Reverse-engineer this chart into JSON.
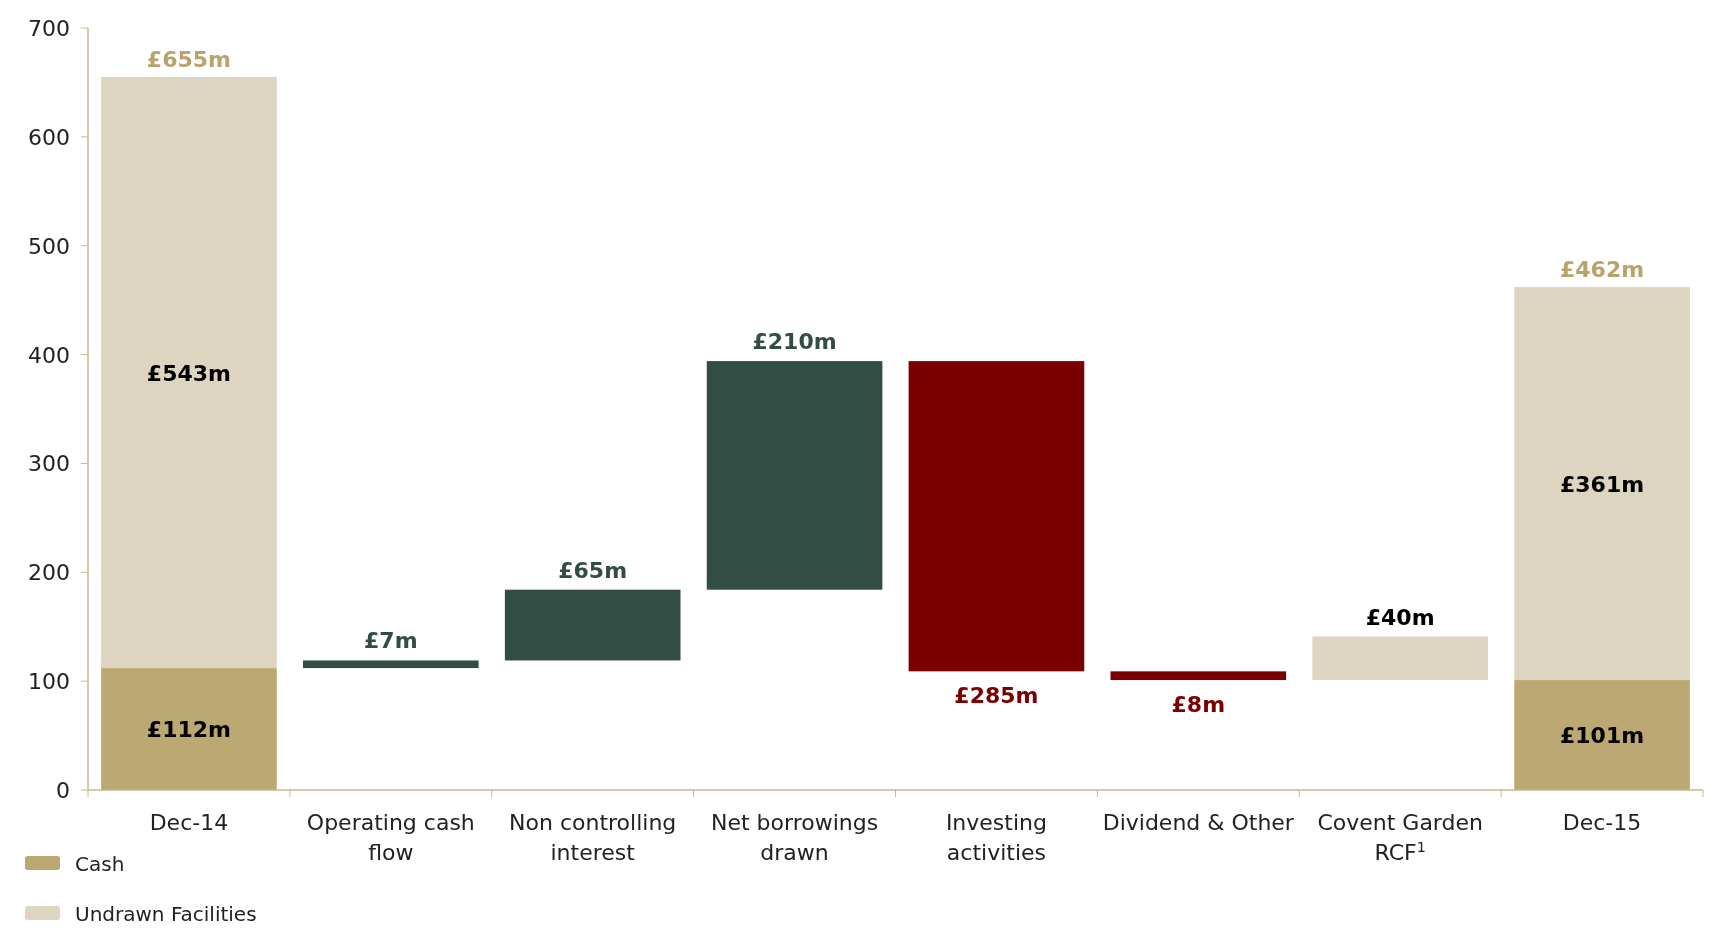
{
  "chart_data": {
    "type": "bar",
    "categories": [
      "Dec-14",
      "Operating cash flow",
      "Non controlling interest",
      "Net borrowings drawn",
      "Investing activities",
      "Dividend & Other",
      "Covent Garden RCF$^{1}$",
      "Dec-15"
    ],
    "series": [
      {
        "name": "Cash",
        "color": "#bca872",
        "values": [
          112,
          null,
          null,
          null,
          null,
          null,
          null,
          101
        ],
        "base": [
          0,
          null,
          null,
          null,
          null,
          null,
          null,
          0
        ],
        "value_labels": [
          "£112m",
          null,
          null,
          null,
          null,
          null,
          null,
          "£101m"
        ]
      },
      {
        "name": "Undrawn Facilities",
        "color": "#ded5c0",
        "values": [
          543,
          null,
          null,
          null,
          null,
          null,
          40,
          361
        ],
        "base": [
          112,
          null,
          null,
          null,
          null,
          null,
          101,
          101
        ],
        "value_labels": [
          "£543m",
          null,
          null,
          null,
          null,
          null,
          "£40m",
          "£361m"
        ]
      },
      {
        "color": "#324d44",
        "values": [
          null,
          7,
          65,
          210,
          null,
          null,
          null,
          null
        ],
        "base": [
          null,
          112,
          119,
          184,
          null,
          null,
          null,
          null
        ],
        "value_labels": [
          null,
          "£7m",
          "£65m",
          "£210m",
          null,
          null,
          null,
          null
        ]
      },
      {
        "color": "#7a0000",
        "values": [
          null,
          null,
          null,
          null,
          285,
          8,
          null,
          null
        ],
        "base": [
          null,
          null,
          null,
          null,
          109,
          101,
          null,
          null
        ],
        "value_labels": [
          null,
          null,
          null,
          null,
          "£285m",
          "£8m",
          null,
          null
        ]
      }
    ],
    "totals": [
      "£655m",
      null,
      null,
      null,
      null,
      null,
      null,
      "£462m"
    ],
    "ylim": [
      0,
      700
    ],
    "yticks": [
      0,
      100,
      200,
      300,
      400,
      500,
      600,
      700
    ],
    "legend": "bottom left"
  }
}
